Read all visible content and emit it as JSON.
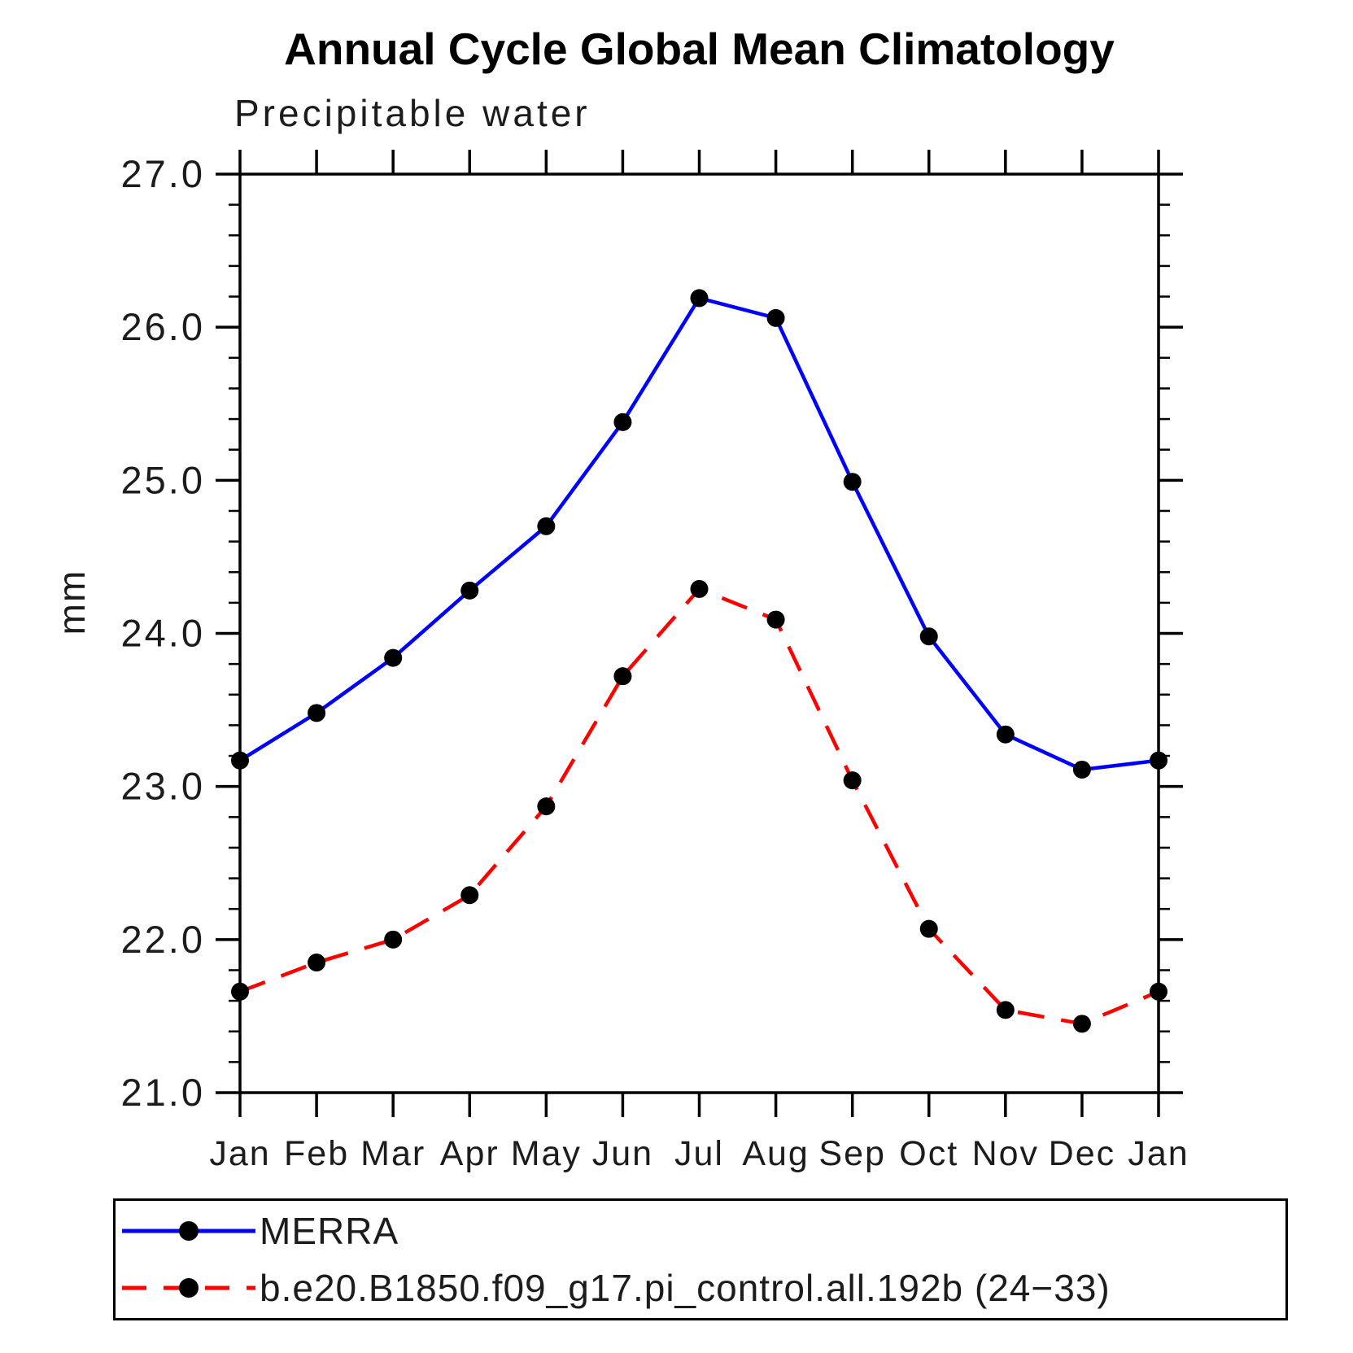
{
  "chart_data": {
    "type": "line",
    "title": "Annual Cycle Global Mean Climatology",
    "subtitle": "Precipitable water",
    "xlabel": "",
    "ylabel": "mm",
    "ylim": [
      21.0,
      27.0
    ],
    "ytick_interval": 1.0,
    "yminor_interval": 0.2,
    "ytick_labels": [
      "21.0",
      "22.0",
      "23.0",
      "24.0",
      "25.0",
      "26.0",
      "27.0"
    ],
    "categories": [
      "Jan",
      "Feb",
      "Mar",
      "Apr",
      "May",
      "Jun",
      "Jul",
      "Aug",
      "Sep",
      "Oct",
      "Nov",
      "Dec",
      "Jan"
    ],
    "grid": false,
    "legend_position": "bottom",
    "series": [
      {
        "name": "MERRA",
        "color": "#0000ff",
        "line_style": "solid",
        "marker": "filled-circle",
        "marker_color": "#000000",
        "values": [
          23.17,
          23.48,
          23.84,
          24.28,
          24.7,
          25.38,
          26.19,
          26.06,
          24.99,
          23.98,
          23.34,
          23.11,
          23.17
        ]
      },
      {
        "name": "b.e20.B1850.f09_g17.pi_control.all.192b (24−33)",
        "color": "#ff0000",
        "line_style": "dashed",
        "marker": "filled-circle",
        "marker_color": "#000000",
        "values": [
          21.66,
          21.85,
          22.0,
          22.29,
          22.87,
          23.72,
          24.29,
          24.09,
          23.04,
          22.07,
          21.54,
          21.45,
          21.66
        ]
      }
    ]
  }
}
